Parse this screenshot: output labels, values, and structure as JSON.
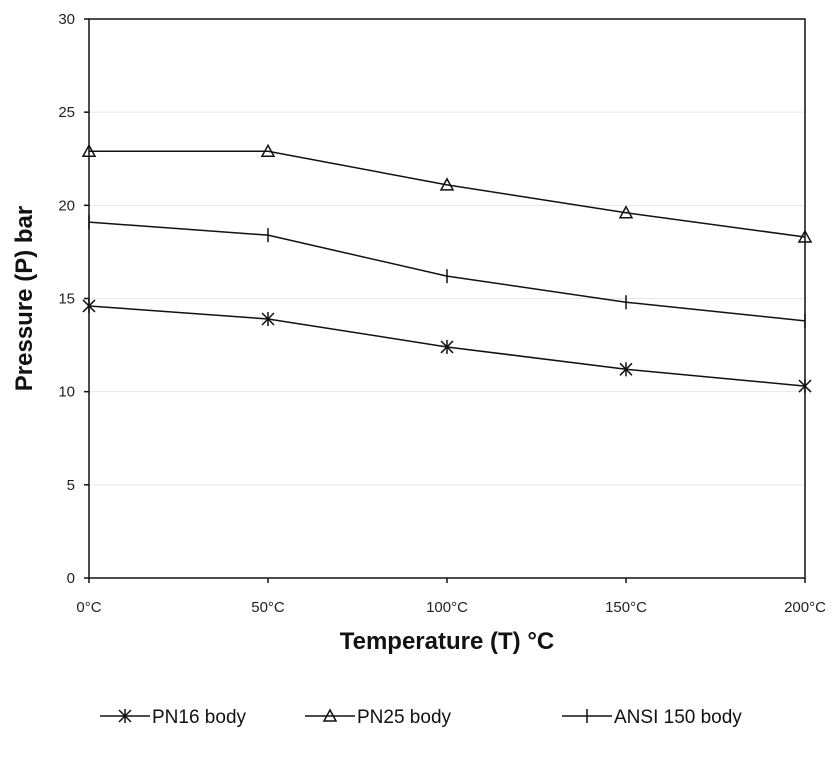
{
  "chart_data": {
    "type": "line",
    "categories": [
      "0°C",
      "50°C",
      "100°C",
      "150°C",
      "200°C"
    ],
    "xlabel": "Temperature (T) °C",
    "ylabel": "Pressure (P) bar",
    "ylim": [
      0,
      30
    ],
    "yticks": [
      "0",
      "5",
      "10",
      "15",
      "20",
      "25",
      "30"
    ],
    "grid": true,
    "legend_position": "bottom",
    "series": [
      {
        "name": "PN16 body",
        "marker": "asterisk",
        "values": [
          14.6,
          13.9,
          12.4,
          11.2,
          10.3
        ]
      },
      {
        "name": "PN25 body",
        "marker": "triangle",
        "values": [
          22.9,
          22.9,
          21.1,
          19.6,
          18.3
        ]
      },
      {
        "name": "ANSI 150 body",
        "marker": "plus",
        "values": [
          19.1,
          18.4,
          16.2,
          14.8,
          13.8
        ]
      }
    ]
  }
}
